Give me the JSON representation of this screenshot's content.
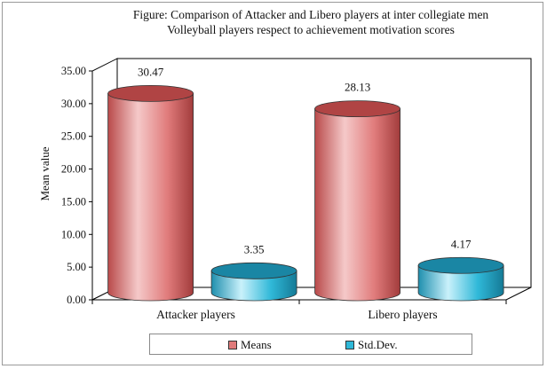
{
  "chart_data": {
    "type": "bar",
    "title": "Figure: Comparison of Attacker and Libero players at inter collegiate men Volleyball players respect to achievement motivation scores",
    "title_lines": [
      "Figure: Comparison of Attacker and Libero players at inter collegiate men",
      "Volleyball players respect to achievement motivation scores"
    ],
    "ylabel": "Mean value",
    "xlabel": "",
    "categories": [
      "Attacker players",
      "Libero players"
    ],
    "series": [
      {
        "name": "Means",
        "values": [
          30.47,
          28.13
        ],
        "labels": [
          "30.47",
          "28.13"
        ],
        "color": "#e07b7b"
      },
      {
        "name": "Std.Dev.",
        "values": [
          3.35,
          4.17
        ],
        "labels": [
          "3.35",
          "4.17"
        ],
        "color": "#2fb8d8"
      }
    ],
    "ylim": [
      0,
      35
    ],
    "yticks": [
      "0.00",
      "5.00",
      "10.00",
      "15.00",
      "20.00",
      "25.00",
      "30.00",
      "35.00"
    ],
    "style": "3d-cylinder",
    "grid": false,
    "legend_position": "bottom"
  }
}
